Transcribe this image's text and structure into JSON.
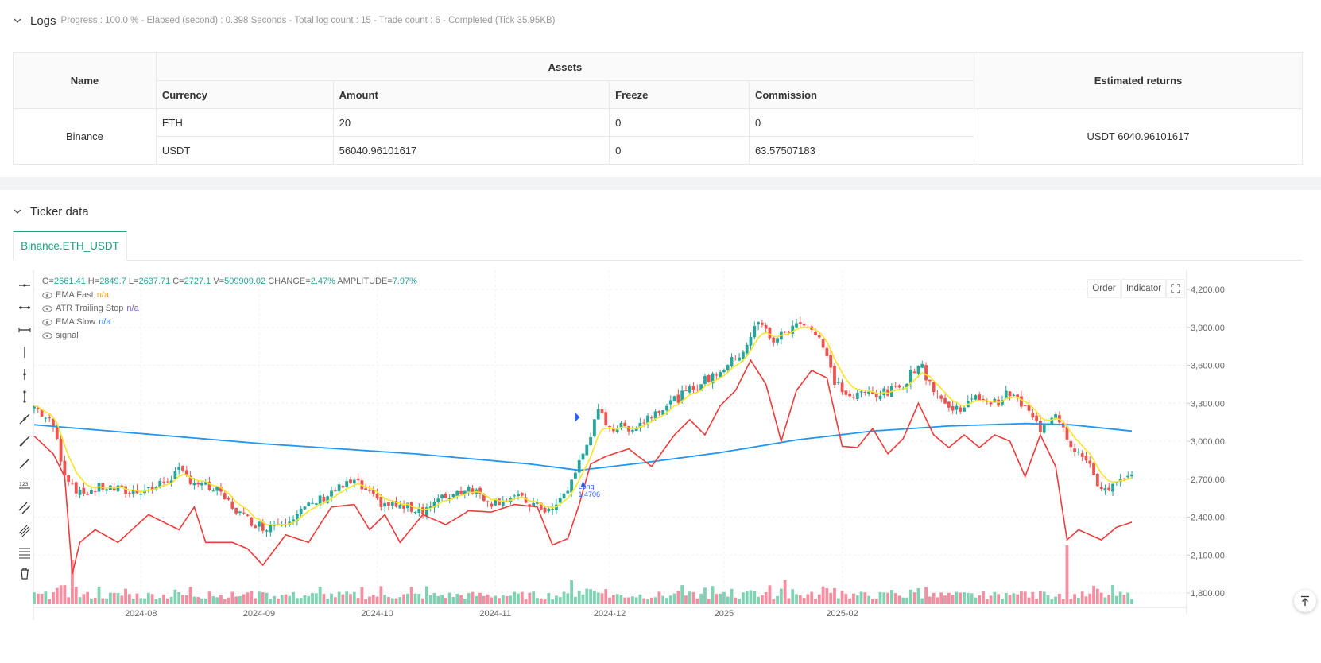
{
  "logs": {
    "title": "Logs",
    "meta": "Progress : 100.0 % - Elapsed (second) : 0.398  Seconds - Total log count : 15 - Trade count : 6 - Completed (Tick 35.95KB)"
  },
  "assets_table": {
    "col_name": "Name",
    "col_assets": "Assets",
    "col_returns": "Estimated returns",
    "sub_headers": [
      "Currency",
      "Amount",
      "Freeze",
      "Commission"
    ],
    "exchange": "Binance",
    "rows": [
      {
        "currency": "ETH",
        "amount": "20",
        "freeze": "0",
        "commission": "0"
      },
      {
        "currency": "USDT",
        "amount": "56040.96101617",
        "freeze": "0",
        "commission": "63.57507183"
      }
    ],
    "returns": "USDT 6040.96101617"
  },
  "ticker": {
    "title": "Ticker data",
    "tab_label": "Binance.ETH_USDT"
  },
  "chart_header": {
    "ohlc_prefix_o": "O=",
    "o": "2661.41",
    "h_label": " H=",
    "h": "2849.7",
    "l_label": " L=",
    "l": "2637.71",
    "c_label": " C=",
    "c": "2727.1",
    "v_label": " V=",
    "v": "509909.02",
    "change_label": " CHANGE=",
    "change": "2.47%",
    "amp_label": " AMPLITUDE=",
    "amp": "7.97%"
  },
  "legend": [
    {
      "name": "EMA Fast",
      "value": "n/a",
      "color": "#f5a623"
    },
    {
      "name": "ATR Trailing Stop",
      "value": "n/a",
      "color": "#7b61c4"
    },
    {
      "name": "EMA Slow",
      "value": "n/a",
      "color": "#2979ff"
    },
    {
      "name": "signal",
      "value": "",
      "color": "#666666"
    }
  ],
  "buttons": {
    "order": "Order",
    "indicator": "Indicator"
  },
  "signal": {
    "label": "Long",
    "value": "1.4706"
  },
  "chart_data": {
    "type": "candlestick",
    "x_ticks": [
      "2024-08",
      "2024-09",
      "2024-10",
      "2024-11",
      "2024-12",
      "2025",
      "2025-02"
    ],
    "y_ticks": [
      "4,200.00",
      "3,900.00",
      "3,600.00",
      "3,300.00",
      "3,000.00",
      "2,700.00",
      "2,400.00",
      "2,100.00",
      "1,800.00"
    ],
    "ylim": [
      1800,
      4200
    ],
    "colors": {
      "up": "#26a69a",
      "down": "#ef5350",
      "ema_fast": "#f9e526",
      "ema_slow": "#2196f3",
      "atr_stop": "#ef3b3b"
    },
    "close_anchors": [
      [
        0,
        3280
      ],
      [
        5,
        3120
      ],
      [
        8,
        2750
      ],
      [
        12,
        2580
      ],
      [
        18,
        2640
      ],
      [
        25,
        2600
      ],
      [
        32,
        2640
      ],
      [
        38,
        2760
      ],
      [
        42,
        2680
      ],
      [
        48,
        2600
      ],
      [
        55,
        2400
      ],
      [
        60,
        2320
      ],
      [
        66,
        2380
      ],
      [
        72,
        2480
      ],
      [
        78,
        2600
      ],
      [
        84,
        2680
      ],
      [
        90,
        2520
      ],
      [
        96,
        2480
      ],
      [
        102,
        2460
      ],
      [
        108,
        2560
      ],
      [
        114,
        2640
      ],
      [
        120,
        2520
      ],
      [
        126,
        2560
      ],
      [
        132,
        2480
      ],
      [
        136,
        2450
      ],
      [
        140,
        2620
      ],
      [
        144,
        2900
      ],
      [
        148,
        3220
      ],
      [
        152,
        3100
      ],
      [
        158,
        3120
      ],
      [
        164,
        3260
      ],
      [
        170,
        3360
      ],
      [
        176,
        3480
      ],
      [
        182,
        3600
      ],
      [
        186,
        3720
      ],
      [
        190,
        3940
      ],
      [
        194,
        3800
      ],
      [
        198,
        3880
      ],
      [
        202,
        3950
      ],
      [
        206,
        3820
      ],
      [
        210,
        3480
      ],
      [
        214,
        3340
      ],
      [
        218,
        3380
      ],
      [
        224,
        3380
      ],
      [
        228,
        3450
      ],
      [
        232,
        3620
      ],
      [
        236,
        3420
      ],
      [
        240,
        3250
      ],
      [
        244,
        3280
      ],
      [
        248,
        3350
      ],
      [
        252,
        3300
      ],
      [
        256,
        3380
      ],
      [
        260,
        3260
      ],
      [
        264,
        3100
      ],
      [
        268,
        3240
      ],
      [
        272,
        2980
      ],
      [
        276,
        2840
      ],
      [
        280,
        2620
      ],
      [
        284,
        2660
      ],
      [
        288,
        2720
      ]
    ],
    "ema_slow_anchors": [
      [
        0,
        3130
      ],
      [
        20,
        3080
      ],
      [
        60,
        2980
      ],
      [
        100,
        2900
      ],
      [
        130,
        2820
      ],
      [
        143,
        2770
      ],
      [
        160,
        2830
      ],
      [
        180,
        2910
      ],
      [
        200,
        3010
      ],
      [
        220,
        3080
      ],
      [
        240,
        3120
      ],
      [
        260,
        3140
      ],
      [
        272,
        3130
      ],
      [
        288,
        3080
      ]
    ],
    "atr_anchors": [
      [
        0,
        3040
      ],
      [
        5,
        2900
      ],
      [
        8,
        2720
      ],
      [
        10,
        1950
      ],
      [
        12,
        2200
      ],
      [
        16,
        2300
      ],
      [
        22,
        2200
      ],
      [
        30,
        2420
      ],
      [
        38,
        2300
      ],
      [
        42,
        2480
      ],
      [
        45,
        2200
      ],
      [
        52,
        2200
      ],
      [
        56,
        2150
      ],
      [
        60,
        2020
      ],
      [
        66,
        2260
      ],
      [
        72,
        2200
      ],
      [
        78,
        2480
      ],
      [
        84,
        2500
      ],
      [
        88,
        2300
      ],
      [
        92,
        2420
      ],
      [
        96,
        2200
      ],
      [
        102,
        2420
      ],
      [
        108,
        2340
      ],
      [
        114,
        2450
      ],
      [
        120,
        2440
      ],
      [
        126,
        2500
      ],
      [
        132,
        2480
      ],
      [
        136,
        2180
      ],
      [
        140,
        2230
      ],
      [
        143,
        2500
      ],
      [
        146,
        2820
      ],
      [
        150,
        2880
      ],
      [
        156,
        2940
      ],
      [
        162,
        2800
      ],
      [
        168,
        3050
      ],
      [
        172,
        3170
      ],
      [
        176,
        3050
      ],
      [
        180,
        3280
      ],
      [
        184,
        3400
      ],
      [
        188,
        3640
      ],
      [
        192,
        3450
      ],
      [
        196,
        3000
      ],
      [
        200,
        3400
      ],
      [
        204,
        3560
      ],
      [
        208,
        3500
      ],
      [
        212,
        2960
      ],
      [
        216,
        2950
      ],
      [
        220,
        3100
      ],
      [
        224,
        2900
      ],
      [
        228,
        3020
      ],
      [
        232,
        3300
      ],
      [
        236,
        3050
      ],
      [
        240,
        2950
      ],
      [
        244,
        3050
      ],
      [
        248,
        2950
      ],
      [
        252,
        3050
      ],
      [
        256,
        3000
      ],
      [
        260,
        2720
      ],
      [
        264,
        3050
      ],
      [
        268,
        2800
      ],
      [
        271,
        2220
      ],
      [
        274,
        2300
      ],
      [
        280,
        2220
      ],
      [
        284,
        2320
      ],
      [
        288,
        2360
      ]
    ],
    "signal_x_index": 144
  }
}
